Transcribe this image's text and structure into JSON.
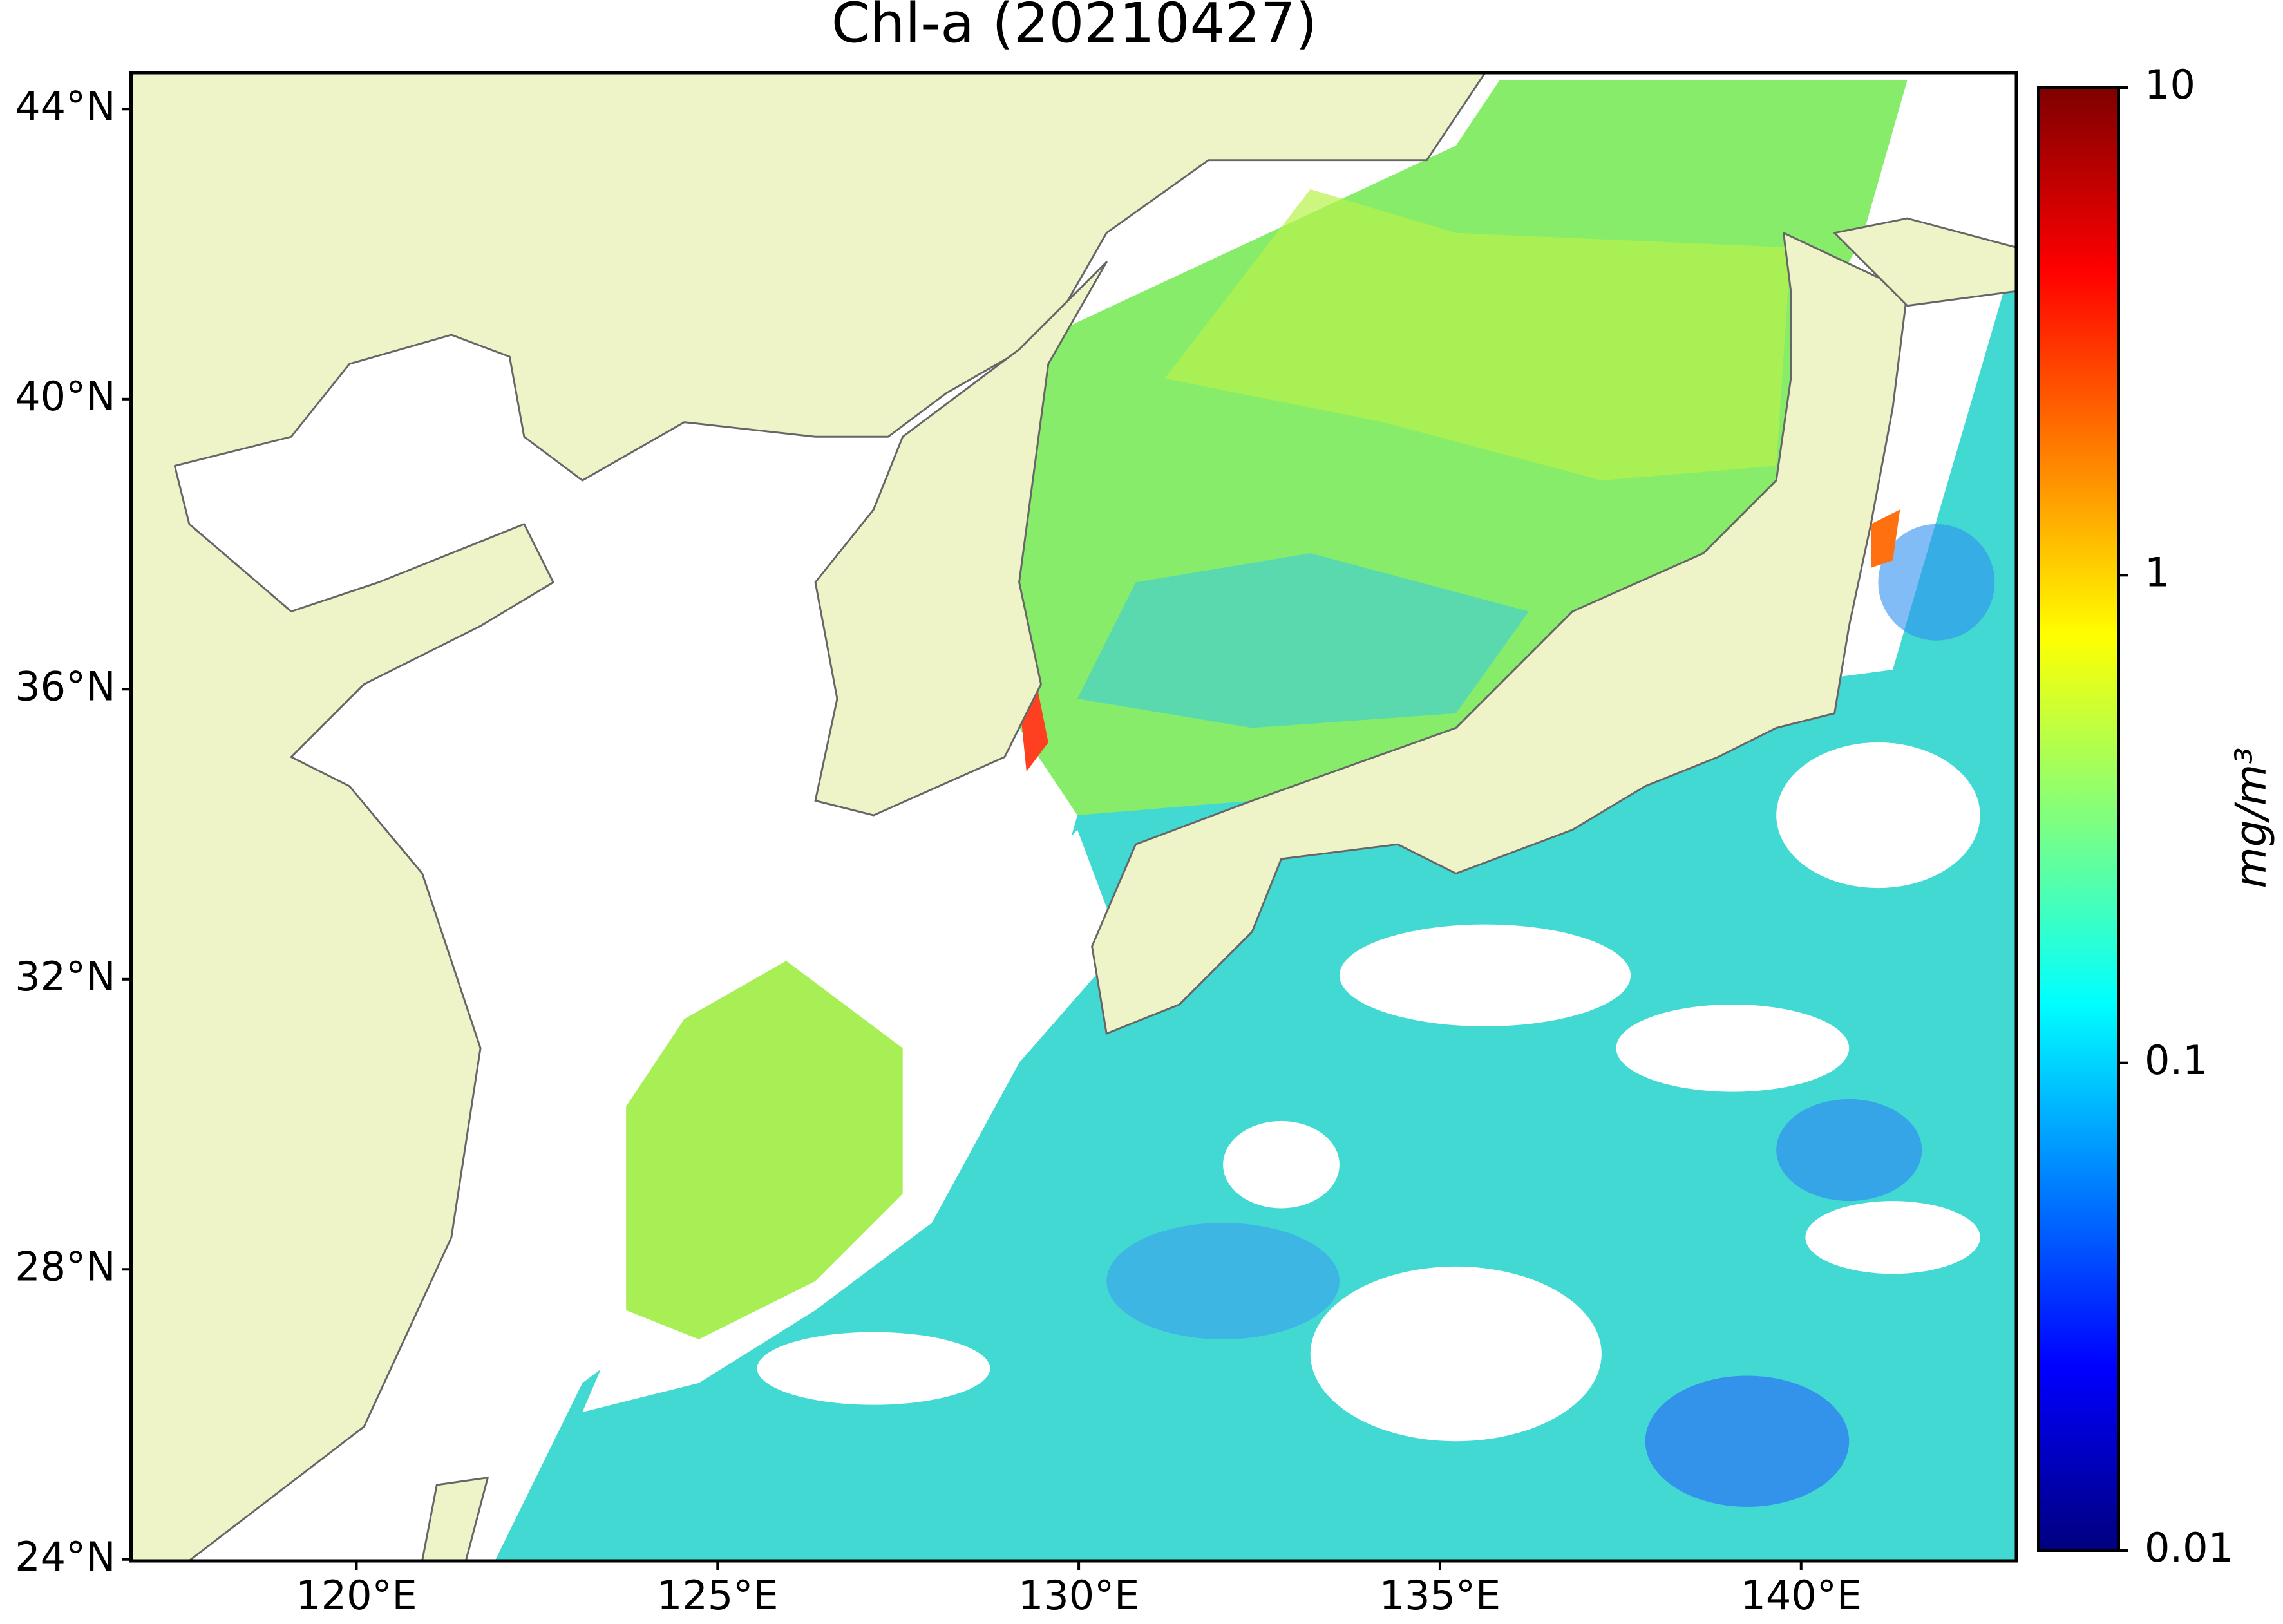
{
  "chart_data": {
    "type": "map",
    "title": "Chl-a (20210427)",
    "xlim": [
      116.88,
      142.98
    ],
    "ylim": [
      23.98,
      44.5
    ],
    "xticks": [
      {
        "value": 120,
        "label": "120°E"
      },
      {
        "value": 125,
        "label": "125°E"
      },
      {
        "value": 130,
        "label": "130°E"
      },
      {
        "value": 135,
        "label": "135°E"
      },
      {
        "value": 140,
        "label": "140°E"
      }
    ],
    "yticks": [
      {
        "value": 24,
        "label": "24°N"
      },
      {
        "value": 28,
        "label": "28°N"
      },
      {
        "value": 32,
        "label": "32°N"
      },
      {
        "value": 36,
        "label": "36°N"
      },
      {
        "value": 40,
        "label": "40°N"
      },
      {
        "value": 44,
        "label": "44°N"
      }
    ],
    "land_color": "#eff3c8",
    "colorbar": {
      "label": "mg/m³",
      "scale": "log",
      "lim": [
        0.01,
        10
      ],
      "ticks": [
        0.01,
        0.1,
        1,
        10
      ],
      "colormap": [
        "#00007f",
        "#0000ff",
        "#007fff",
        "#00ffff",
        "#7fff7f",
        "#ffff00",
        "#ff7f00",
        "#ff0000",
        "#7f0000"
      ]
    }
  }
}
